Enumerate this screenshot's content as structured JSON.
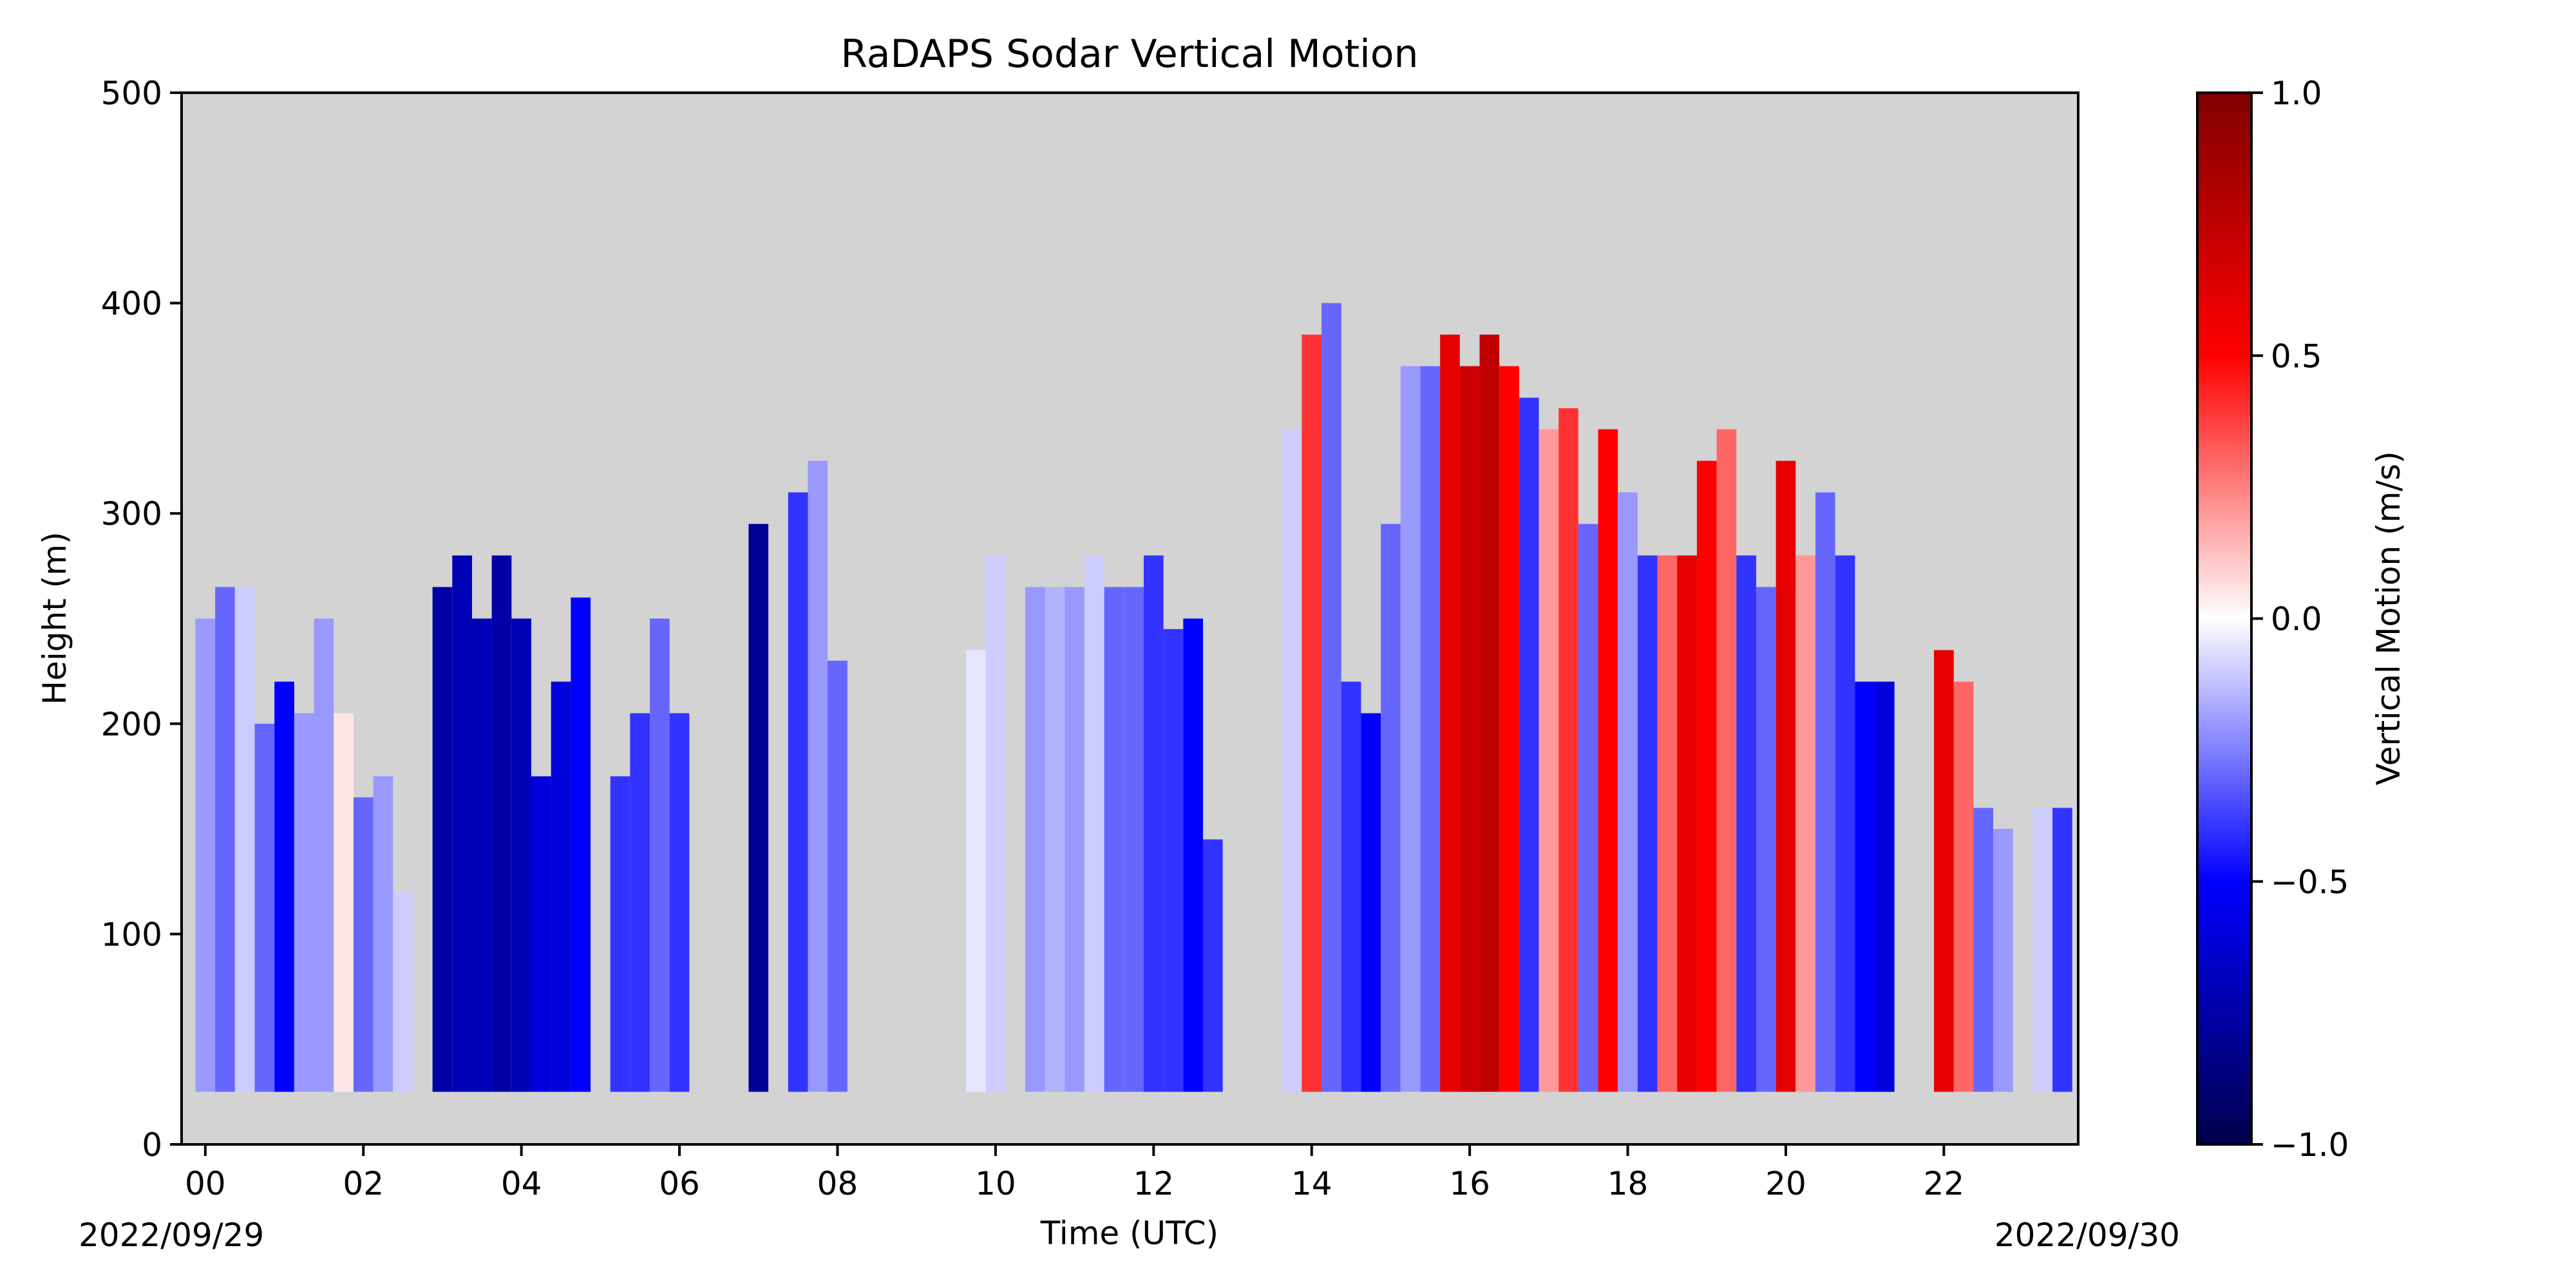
{
  "chart_data": {
    "type": "heatmap",
    "title": "RaDAPS Sodar Vertical Motion",
    "xlabel": "Time (UTC)",
    "ylabel": "Height (m)",
    "xlim": [
      -0.3,
      23.7
    ],
    "ylim": [
      0,
      500
    ],
    "x_ticks": [
      0,
      2,
      4,
      6,
      8,
      10,
      12,
      14,
      16,
      18,
      20,
      22
    ],
    "x_tick_labels": [
      "00",
      "02",
      "04",
      "06",
      "08",
      "10",
      "12",
      "14",
      "16",
      "18",
      "20",
      "22"
    ],
    "y_ticks": [
      0,
      100,
      200,
      300,
      400,
      500
    ],
    "y_tick_labels": [
      "0",
      "100",
      "200",
      "300",
      "400",
      "500"
    ],
    "date_start_label": "2022/09/29",
    "date_end_label": "2022/09/30",
    "background_color": "#d3d3d3",
    "colormap": "seismic",
    "colorbar": {
      "label": "Vertical Motion (m/s)",
      "vmin": -1.0,
      "vmax": 1.0,
      "ticks": [
        -1.0,
        -0.5,
        0.0,
        0.5,
        1.0
      ],
      "tick_labels": [
        "−1.0",
        "−0.5",
        "0.0",
        "0.5",
        "1.0"
      ]
    },
    "height_range_min": 25,
    "series": [
      {
        "x": 0.0,
        "top": 250,
        "w": -0.2
      },
      {
        "x": 0.25,
        "top": 265,
        "w": -0.3
      },
      {
        "x": 0.5,
        "top": 265,
        "w": -0.1
      },
      {
        "x": 0.75,
        "top": 200,
        "w": -0.3
      },
      {
        "x": 1.0,
        "top": 220,
        "w": -0.5
      },
      {
        "x": 1.25,
        "top": 205,
        "w": -0.2
      },
      {
        "x": 1.5,
        "top": 250,
        "w": -0.2
      },
      {
        "x": 1.75,
        "top": 205,
        "w": 0.05
      },
      {
        "x": 2.0,
        "top": 165,
        "w": -0.3
      },
      {
        "x": 2.25,
        "top": 175,
        "w": -0.2
      },
      {
        "x": 2.5,
        "top": 120,
        "w": -0.1
      },
      {
        "x": 3.0,
        "top": 265,
        "w": -0.75
      },
      {
        "x": 3.25,
        "top": 280,
        "w": -0.7
      },
      {
        "x": 3.5,
        "top": 250,
        "w": -0.7
      },
      {
        "x": 3.75,
        "top": 280,
        "w": -0.75
      },
      {
        "x": 4.0,
        "top": 250,
        "w": -0.7
      },
      {
        "x": 4.25,
        "top": 175,
        "w": -0.6
      },
      {
        "x": 4.5,
        "top": 220,
        "w": -0.6
      },
      {
        "x": 4.75,
        "top": 260,
        "w": -0.5
      },
      {
        "x": 5.25,
        "top": 175,
        "w": -0.4
      },
      {
        "x": 5.5,
        "top": 205,
        "w": -0.4
      },
      {
        "x": 5.75,
        "top": 250,
        "w": -0.3
      },
      {
        "x": 6.0,
        "top": 205,
        "w": -0.4
      },
      {
        "x": 7.0,
        "top": 295,
        "w": -0.8
      },
      {
        "x": 7.5,
        "top": 310,
        "w": -0.4
      },
      {
        "x": 7.75,
        "top": 325,
        "w": -0.2
      },
      {
        "x": 8.0,
        "top": 230,
        "w": -0.3
      },
      {
        "x": 9.75,
        "top": 235,
        "w": -0.05
      },
      {
        "x": 10.0,
        "top": 280,
        "w": -0.1
      },
      {
        "x": 10.5,
        "top": 265,
        "w": -0.2
      },
      {
        "x": 10.75,
        "top": 265,
        "w": -0.15
      },
      {
        "x": 11.0,
        "top": 265,
        "w": -0.2
      },
      {
        "x": 11.25,
        "top": 280,
        "w": -0.1
      },
      {
        "x": 11.5,
        "top": 265,
        "w": -0.3
      },
      {
        "x": 11.75,
        "top": 265,
        "w": -0.3
      },
      {
        "x": 12.0,
        "top": 280,
        "w": -0.4
      },
      {
        "x": 12.25,
        "top": 245,
        "w": -0.4
      },
      {
        "x": 12.5,
        "top": 250,
        "w": -0.5
      },
      {
        "x": 12.75,
        "top": 145,
        "w": -0.4
      },
      {
        "x": 13.75,
        "top": 340,
        "w": -0.1
      },
      {
        "x": 14.0,
        "top": 385,
        "w": 0.4
      },
      {
        "x": 14.25,
        "top": 400,
        "w": -0.3
      },
      {
        "x": 14.5,
        "top": 220,
        "w": -0.4
      },
      {
        "x": 14.75,
        "top": 205,
        "w": -0.5
      },
      {
        "x": 15.0,
        "top": 295,
        "w": -0.3
      },
      {
        "x": 15.25,
        "top": 370,
        "w": -0.2
      },
      {
        "x": 15.5,
        "top": 370,
        "w": -0.3
      },
      {
        "x": 15.75,
        "top": 385,
        "w": 0.6
      },
      {
        "x": 16.0,
        "top": 370,
        "w": 0.7
      },
      {
        "x": 16.25,
        "top": 385,
        "w": 0.75
      },
      {
        "x": 16.5,
        "top": 370,
        "w": 0.5
      },
      {
        "x": 16.75,
        "top": 355,
        "w": -0.4
      },
      {
        "x": 17.0,
        "top": 340,
        "w": 0.2
      },
      {
        "x": 17.25,
        "top": 350,
        "w": 0.4
      },
      {
        "x": 17.5,
        "top": 295,
        "w": -0.3
      },
      {
        "x": 17.75,
        "top": 340,
        "w": 0.5
      },
      {
        "x": 18.0,
        "top": 310,
        "w": -0.2
      },
      {
        "x": 18.25,
        "top": 280,
        "w": -0.4
      },
      {
        "x": 18.5,
        "top": 280,
        "w": 0.3
      },
      {
        "x": 18.75,
        "top": 280,
        "w": 0.6
      },
      {
        "x": 19.0,
        "top": 325,
        "w": 0.5
      },
      {
        "x": 19.25,
        "top": 340,
        "w": 0.3
      },
      {
        "x": 19.5,
        "top": 280,
        "w": -0.4
      },
      {
        "x": 19.75,
        "top": 265,
        "w": -0.3
      },
      {
        "x": 20.0,
        "top": 325,
        "w": 0.6
      },
      {
        "x": 20.25,
        "top": 280,
        "w": 0.2
      },
      {
        "x": 20.5,
        "top": 310,
        "w": -0.3
      },
      {
        "x": 20.75,
        "top": 280,
        "w": -0.4
      },
      {
        "x": 21.0,
        "top": 220,
        "w": -0.5
      },
      {
        "x": 21.25,
        "top": 220,
        "w": -0.6
      },
      {
        "x": 22.0,
        "top": 235,
        "w": 0.6
      },
      {
        "x": 22.25,
        "top": 220,
        "w": 0.3
      },
      {
        "x": 22.5,
        "top": 160,
        "w": -0.3
      },
      {
        "x": 22.75,
        "top": 150,
        "w": -0.2
      },
      {
        "x": 23.25,
        "top": 160,
        "w": -0.1
      },
      {
        "x": 23.5,
        "top": 160,
        "w": -0.4
      }
    ]
  }
}
